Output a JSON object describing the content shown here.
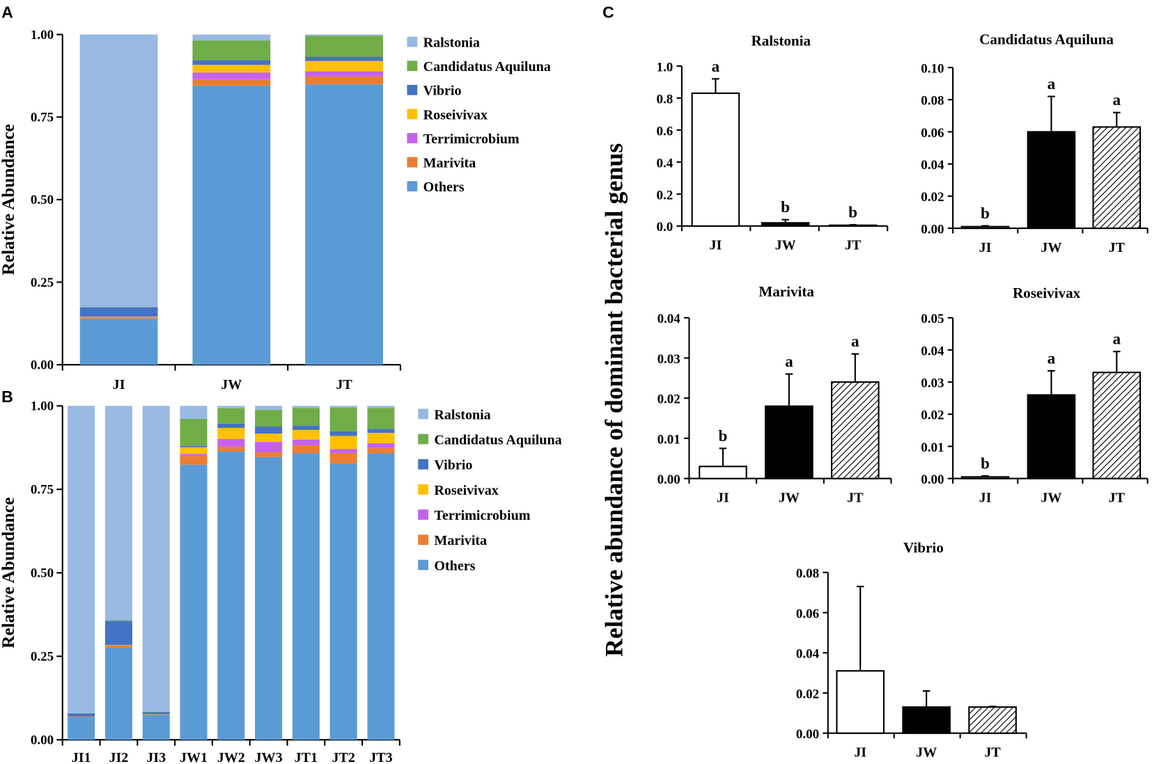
{
  "colors": {
    "Ralstonia": "#98B9E2",
    "Candidatus Aquiluna": "#70AD47",
    "Vibrio": "#4472C4",
    "Roseivivax": "#FFC000",
    "Terrimicrobium": "#C462EE",
    "Marivita": "#ED7D31",
    "Others": "#5B9BD5"
  },
  "panel_labels": [
    "A",
    "B",
    "C"
  ],
  "chart_data": [
    {
      "id": "A",
      "type": "bar",
      "stacked": true,
      "ylabel": "Relative Abundance",
      "ylim": [
        0,
        1
      ],
      "yticks": [
        "0.00",
        "0.25",
        "0.50",
        "0.75",
        "1.00"
      ],
      "categories": [
        "JI",
        "JW",
        "JT"
      ],
      "legend": [
        "Ralstonia",
        "Candidatus Aquiluna",
        "Vibrio",
        "Roseivivax",
        "Terrimicrobium",
        "Marivita",
        "Others"
      ],
      "series": [
        {
          "name": "Others",
          "values": [
            0.14,
            0.845,
            0.849
          ]
        },
        {
          "name": "Marivita",
          "values": [
            0.004,
            0.02,
            0.024
          ]
        },
        {
          "name": "Terrimicrobium",
          "values": [
            0.001,
            0.02,
            0.016
          ]
        },
        {
          "name": "Roseivivax",
          "values": [
            0.001,
            0.023,
            0.031
          ]
        },
        {
          "name": "Vibrio",
          "values": [
            0.028,
            0.014,
            0.013
          ]
        },
        {
          "name": "Candidatus Aquiluna",
          "values": [
            0.001,
            0.06,
            0.063
          ]
        },
        {
          "name": "Ralstonia",
          "values": [
            0.825,
            0.018,
            0.004
          ]
        }
      ]
    },
    {
      "id": "B",
      "type": "bar",
      "stacked": true,
      "ylabel": "Relative Abundance",
      "ylim": [
        0,
        1
      ],
      "yticks": [
        "0.00",
        "0.25",
        "0.50",
        "0.75",
        "1.00"
      ],
      "categories": [
        "JI1",
        "JI2",
        "JI3",
        "JW1",
        "JW2",
        "JW3",
        "JT1",
        "JT2",
        "JT3"
      ],
      "legend": [
        "Ralstonia",
        "Candidatus Aquiluna",
        "Vibrio",
        "Roseivivax",
        "Terrimicrobium",
        "Marivita",
        "Others"
      ],
      "series": [
        {
          "name": "Others",
          "values": [
            0.068,
            0.277,
            0.075,
            0.824,
            0.863,
            0.847,
            0.858,
            0.828,
            0.858
          ]
        },
        {
          "name": "Marivita",
          "values": [
            0.002,
            0.006,
            0.002,
            0.026,
            0.015,
            0.014,
            0.024,
            0.031,
            0.016
          ]
        },
        {
          "name": "Terrimicrobium",
          "values": [
            0.0,
            0.0,
            0.0,
            0.006,
            0.023,
            0.031,
            0.017,
            0.012,
            0.014
          ]
        },
        {
          "name": "Roseivivax",
          "values": [
            0.0,
            0.001,
            0.0,
            0.02,
            0.033,
            0.025,
            0.029,
            0.039,
            0.031
          ]
        },
        {
          "name": "Vibrio",
          "values": [
            0.009,
            0.072,
            0.006,
            0.004,
            0.013,
            0.021,
            0.012,
            0.014,
            0.012
          ]
        },
        {
          "name": "Candidatus Aquiluna",
          "values": [
            0.001,
            0.002,
            0.001,
            0.081,
            0.046,
            0.05,
            0.054,
            0.071,
            0.063
          ]
        },
        {
          "name": "Ralstonia",
          "values": [
            0.92,
            0.642,
            0.916,
            0.039,
            0.007,
            0.012,
            0.006,
            0.005,
            0.006
          ]
        }
      ]
    },
    {
      "id": "C",
      "type": "bar",
      "ylabel": "Relative abundance of dominant bacterial genus",
      "categories": [
        "JI",
        "JW",
        "JT"
      ],
      "subplots": [
        {
          "title": "Ralstonia",
          "ylim": [
            0,
            1.0
          ],
          "yticks": [
            "0.0",
            "0.2",
            "0.4",
            "0.6",
            "0.8",
            "1.0"
          ],
          "values": [
            0.83,
            0.02,
            0.005
          ],
          "errors": [
            0.09,
            0.02,
            0.003
          ],
          "letters": [
            "a",
            "b",
            "b"
          ]
        },
        {
          "title": "Candidatus Aquiluna",
          "ylim": [
            0,
            0.1
          ],
          "yticks": [
            "0.00",
            "0.02",
            "0.04",
            "0.06",
            "0.08",
            "0.10"
          ],
          "values": [
            0.001,
            0.06,
            0.063
          ],
          "errors": [
            0.0005,
            0.022,
            0.009
          ],
          "letters": [
            "b",
            "a",
            "a"
          ]
        },
        {
          "title": "Marivita",
          "ylim": [
            0,
            0.04
          ],
          "yticks": [
            "0.00",
            "0.01",
            "0.02",
            "0.03",
            "0.04"
          ],
          "values": [
            0.003,
            0.018,
            0.024
          ],
          "errors": [
            0.0045,
            0.008,
            0.007
          ],
          "letters": [
            "b",
            "a",
            "a"
          ]
        },
        {
          "title": "Roseivivax",
          "ylim": [
            0,
            0.05
          ],
          "yticks": [
            "0.00",
            "0.01",
            "0.02",
            "0.03",
            "0.04",
            "0.05"
          ],
          "values": [
            0.0005,
            0.026,
            0.033
          ],
          "errors": [
            0.0003,
            0.0075,
            0.0065
          ],
          "letters": [
            "b",
            "a",
            "a"
          ]
        },
        {
          "title": "Vibrio",
          "ylim": [
            0,
            0.08
          ],
          "yticks": [
            "0.00",
            "0.02",
            "0.04",
            "0.06",
            "0.08"
          ],
          "values": [
            0.031,
            0.013,
            0.013
          ],
          "errors": [
            0.042,
            0.008,
            0.0003
          ],
          "letters": [
            "",
            "",
            ""
          ]
        }
      ]
    }
  ]
}
